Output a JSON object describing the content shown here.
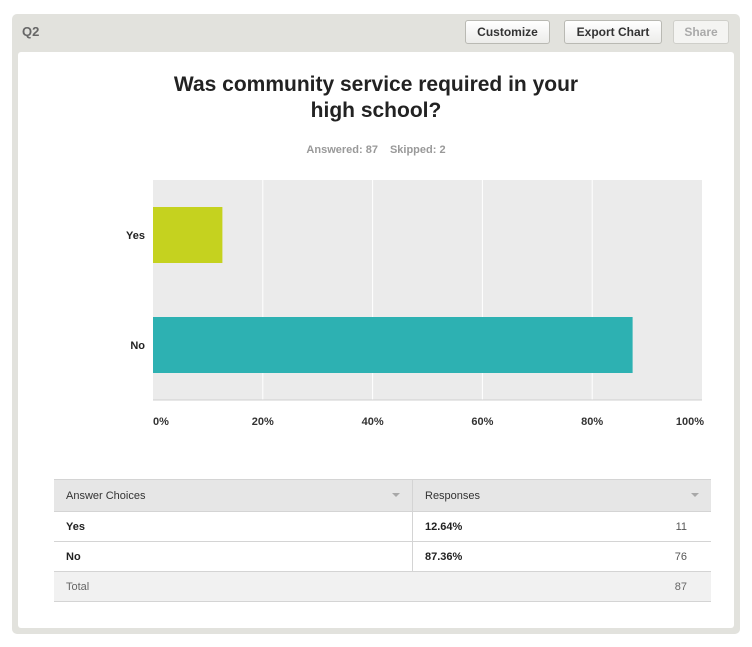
{
  "header": {
    "question_label": "Q2",
    "customize_label": "Customize",
    "export_label": "Export Chart",
    "share_label": "Share"
  },
  "question": {
    "title_line1": "Was community service required in your",
    "title_line2": "high school?",
    "answered": "Answered: 87",
    "skipped": "Skipped: 2"
  },
  "chart_data": {
    "type": "bar",
    "orientation": "horizontal",
    "categories": [
      "Yes",
      "No"
    ],
    "values": [
      12.64,
      87.36
    ],
    "colors": [
      "#c5d21f",
      "#2db1b2"
    ],
    "x_ticks": [
      "0%",
      "20%",
      "40%",
      "60%",
      "80%",
      "100%"
    ],
    "xlim": [
      0,
      100
    ],
    "grid": true,
    "plot_background": "#ebebeb"
  },
  "table": {
    "headers": [
      "Answer Choices",
      "Responses"
    ],
    "rows": [
      {
        "choice": "Yes",
        "percent": "12.64%",
        "count": "11"
      },
      {
        "choice": "No",
        "percent": "87.36%",
        "count": "76"
      }
    ],
    "total_label": "Total",
    "total_count": "87"
  }
}
